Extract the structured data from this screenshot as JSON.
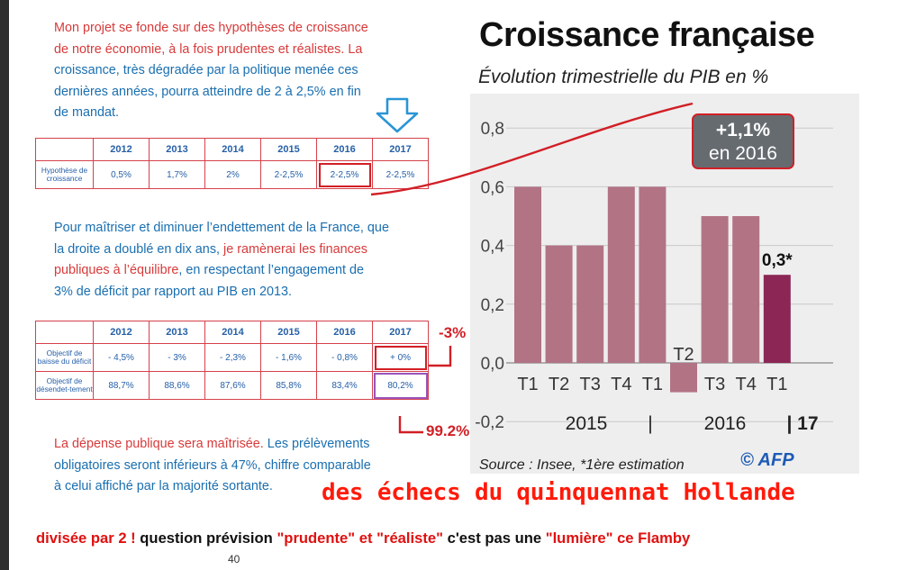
{
  "doc": {
    "para1": {
      "lines": [
        "Mon projet se fonde sur des hypothèses de croissance",
        "de notre économie, à la fois prudentes et réalistes. La",
        "croissance, très dégradée par la politique menée ces",
        "dernières années, pourra atteindre de 2 à 2,5% en fin",
        "de mandat."
      ]
    },
    "table1": {
      "headers": [
        "2012",
        "2013",
        "2014",
        "2015",
        "2016",
        "2017"
      ],
      "rows": [
        {
          "label": "Hypothèse de croissance",
          "cells": [
            "0,5%",
            "1,7%",
            "2%",
            "2-2,5%",
            "2-2,5%",
            "2-2,5%"
          ]
        }
      ]
    },
    "para2": {
      "line1": "Pour maîtriser et diminuer l’endettement de la France, que",
      "line2": "la droite a doublé en dix ans, ",
      "line2_red": "je ramènerai les finances",
      "line3_red": "publiques à l’équilibre",
      "line3": ", en respectant l’engagement de",
      "line4": "3% de déficit par rapport au PIB en 2013."
    },
    "table2": {
      "headers": [
        "2012",
        "2013",
        "2014",
        "2015",
        "2016",
        "2017"
      ],
      "rows": [
        {
          "label": "Objectif de baisse du déficit",
          "cells": [
            "- 4,5%",
            "- 3%",
            "- 2,3%",
            "- 1,6%",
            "- 0,8%",
            "+ 0%"
          ]
        },
        {
          "label": "Objectif de désendet-tement",
          "cells": [
            "88,7%",
            "88,6%",
            "87,6%",
            "85,8%",
            "83,4%",
            "80,2%"
          ]
        }
      ]
    },
    "para3": {
      "line1_red": "La dépense publique sera maîtrisée.",
      "line1": " Les prélèvements",
      "line2": "obligatoires seront inférieurs à 47%, chiffre comparable",
      "line3": "à celui affiché par la majorité sortante."
    },
    "page_number": "40"
  },
  "annotations": {
    "deficit_actual": "-3%",
    "debt_actual": "99.2%",
    "headline": "des échecs du quinquennat Hollande",
    "bottom": {
      "p1_red": "divisée par 2 !",
      "p2": " question prévision  ",
      "p3_red": "\"prudente\" et \"réaliste\"",
      "p4": " c'est pas une ",
      "p5_red": "\"lumière\" ce Flamby"
    },
    "colors": {
      "red": "#d21f26",
      "purple": "#9a55b8",
      "blue_text": "#1a6fb0"
    }
  },
  "chart_data": {
    "type": "bar",
    "title": "Croissance française",
    "subtitle": "Évolution trimestrielle du PIB en %",
    "categories": [
      "T1",
      "T2",
      "T3",
      "T4",
      "T1",
      "T2",
      "T3",
      "T4",
      "T1"
    ],
    "year_labels": [
      "2015",
      "|",
      "2016",
      "| 17"
    ],
    "values": [
      0.6,
      0.4,
      0.4,
      0.6,
      0.6,
      -0.1,
      0.5,
      0.5,
      0.3
    ],
    "bar_colors": [
      "#b27385",
      "#b27385",
      "#b27385",
      "#b27385",
      "#b27385",
      "#b27385",
      "#b27385",
      "#b27385",
      "#8c2655"
    ],
    "ylim": [
      -0.2,
      0.8
    ],
    "yticks": [
      "0,8",
      "0,6",
      "0,4",
      "0,2",
      "0,0",
      "-0,2"
    ],
    "grid": true,
    "last_value_label": "0,3*",
    "callout": {
      "line1": "+1,1%",
      "line2": "en 2016"
    },
    "source": "Source : Insee, *1ère estimation",
    "credit": "© AFP",
    "background": "#eeeeee",
    "grid_color": "#c9c9c9"
  }
}
